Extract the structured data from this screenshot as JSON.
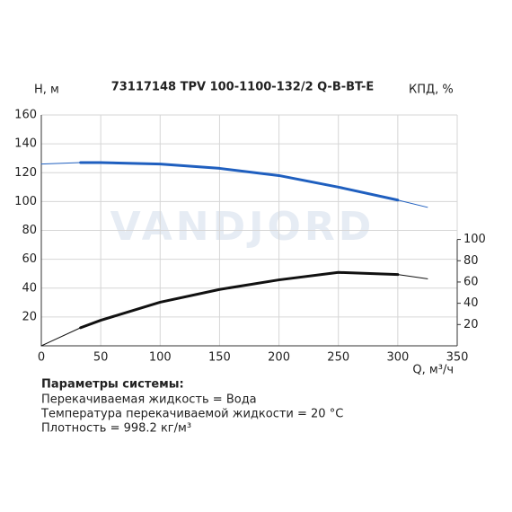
{
  "chart_data": {
    "type": "line",
    "title": "73117148 TPV 100-1100-132/2 Q-B-BT-E",
    "watermark": "VANDJORD",
    "y_label": "H, м",
    "y2_label": "КПД, %",
    "x_label": "Q, м³/ч",
    "x": [
      0,
      33,
      50,
      100,
      150,
      200,
      250,
      300,
      325
    ],
    "series": [
      {
        "color": "#1f5fbf",
        "values": [
          126,
          127,
          127,
          126,
          123,
          118,
          110,
          101,
          96
        ]
      },
      {
        "color": "#111111",
        "axis": "y2",
        "values": [
          0,
          17,
          24,
          41,
          53,
          62,
          69,
          67,
          63
        ]
      }
    ],
    "xlim": [
      0,
      350
    ],
    "xticks": [
      0,
      50,
      100,
      150,
      200,
      250,
      300,
      350
    ],
    "ylim": [
      0,
      160
    ],
    "yticks": [
      20,
      40,
      60,
      80,
      100,
      120,
      140,
      160
    ],
    "y2lim": [
      0,
      217
    ],
    "y2ticks": [
      20,
      40,
      60,
      80,
      100
    ],
    "grid": true
  },
  "parameters": {
    "heading": "Параметры системы:",
    "lines": [
      "Перекачиваемая жидкость = Вода",
      "Температура перекачиваемой жидкости = 20 °C",
      "Плотность = 998.2 кг/м³"
    ]
  }
}
